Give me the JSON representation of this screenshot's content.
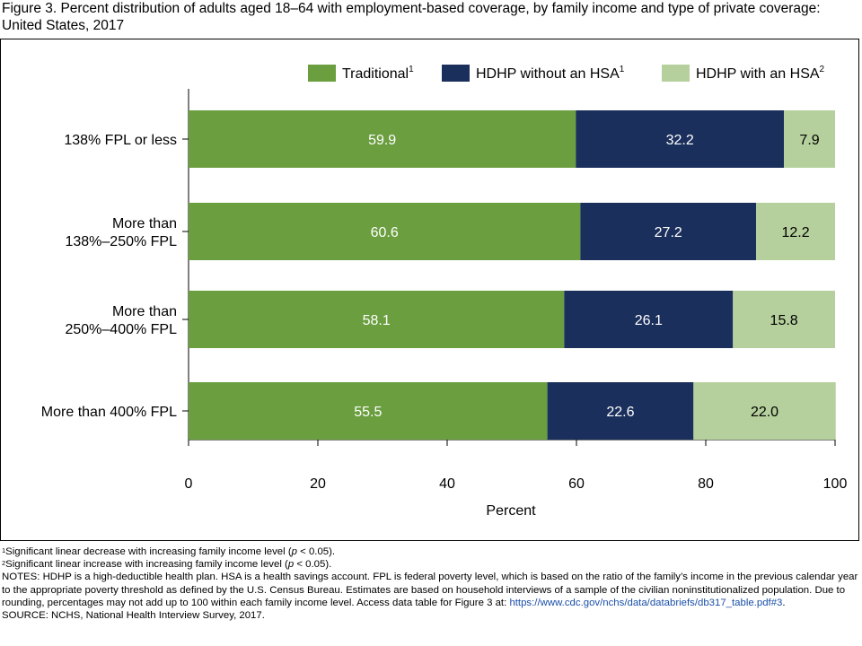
{
  "figure": {
    "title": "Figure 3. Percent distribution of adults aged 18–64 with employment-based coverage, by family income and type of private coverage: United States, 2017"
  },
  "chart_data": {
    "type": "bar",
    "orientation": "horizontal",
    "stacked": true,
    "categories": [
      "138% FPL or less",
      "More than 138%–250% FPL",
      "More than 250%–400% FPL",
      "More than 400% FPL"
    ],
    "category_lines": [
      [
        "138% FPL or less"
      ],
      [
        "More than",
        "138%–250% FPL"
      ],
      [
        "More than",
        "250%–400% FPL"
      ],
      [
        "More than 400% FPL"
      ]
    ],
    "series": [
      {
        "name": "Traditional",
        "note": "1",
        "color": "#6a9e3f",
        "label_color": "#ffffff",
        "values": [
          59.9,
          60.6,
          58.1,
          55.5
        ]
      },
      {
        "name": "HDHP without an HSA",
        "note": "1",
        "color": "#1b2f5c",
        "label_color": "#ffffff",
        "values": [
          32.2,
          27.2,
          26.1,
          22.6
        ]
      },
      {
        "name": "HDHP with an HSA",
        "note": "2",
        "color": "#b5d09c",
        "label_color": "#000000",
        "values": [
          7.9,
          12.2,
          15.8,
          22.0
        ]
      }
    ],
    "xlabel": "Percent",
    "ylabel": "",
    "xlim": [
      0,
      100
    ],
    "xticks": [
      0,
      20,
      40,
      60,
      80,
      100
    ],
    "grid": false,
    "legend_position": "top-right"
  },
  "notes": {
    "note1_marker": "1",
    "note1_text": "Significant linear decrease with increasing family income level (",
    "note1_p": "p",
    "note1_end": " < 0.05).",
    "note2_marker": "2",
    "note2_text": "Significant linear increase with increasing family income level (",
    "note2_p": "p",
    "note2_end": " < 0.05).",
    "notes_text": "NOTES: HDHP is a high-deductible health plan. HSA is a health savings account. FPL is federal poverty level, which is based on the ratio of the family’s income in the previous calendar year to the appropriate poverty threshold as defined by the U.S. Census Bureau. Estimates are based on household interviews of a sample of the civilian noninstitutionalized population. Due to rounding, percentages may not add up to 100 within each family income level. Access data table for Figure 3 at: ",
    "notes_link": "https://www.cdc.gov/nchs/data/databriefs/db317_table.pdf#3",
    "notes_end": ".",
    "source": "SOURCE: NCHS, National Health Interview Survey, 2017."
  }
}
